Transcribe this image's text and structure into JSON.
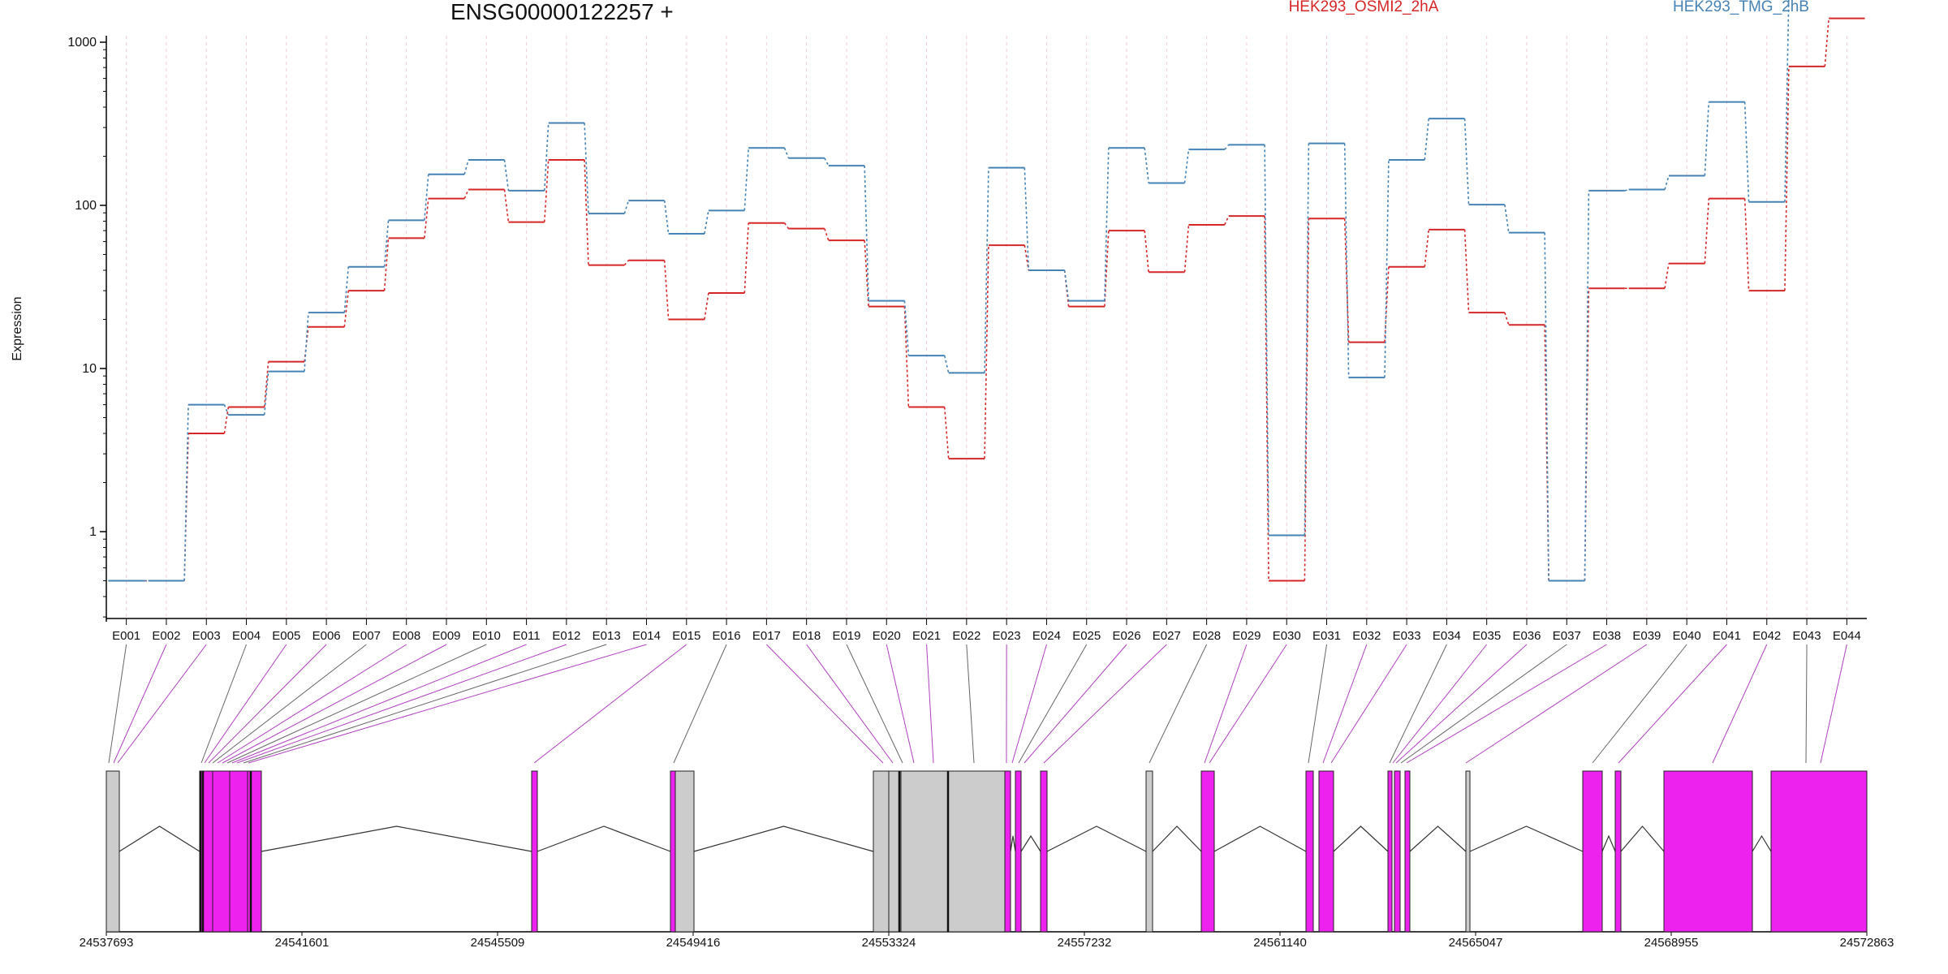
{
  "chart_data": {
    "type": "line",
    "title": "ENSG00000122257 +",
    "ylabel": "Expression",
    "yscale": "log",
    "yticks": [
      1,
      10,
      100,
      1000
    ],
    "ytick_labels": [
      "1",
      "10",
      "100",
      "1000"
    ],
    "categories": [
      "E001",
      "E002",
      "E003",
      "E004",
      "E005",
      "E006",
      "E007",
      "E008",
      "E009",
      "E010",
      "E011",
      "E012",
      "E013",
      "E014",
      "E015",
      "E016",
      "E017",
      "E018",
      "E019",
      "E020",
      "E021",
      "E022",
      "E023",
      "E024",
      "E025",
      "E026",
      "E027",
      "E028",
      "E029",
      "E030",
      "E031",
      "E032",
      "E033",
      "E034",
      "E035",
      "E036",
      "E037",
      "E038",
      "E039",
      "E040",
      "E041",
      "E042",
      "E043",
      "E044"
    ],
    "series": [
      {
        "name": "HEK293_OSMI2_2hA",
        "color": "#d62728",
        "values": [
          0.5,
          0.5,
          4,
          5.8,
          11,
          18,
          30,
          63,
          110,
          125,
          79,
          190,
          43,
          46,
          20,
          29,
          78,
          72,
          61,
          24,
          5.8,
          2.8,
          57,
          40,
          24,
          70,
          39,
          76,
          86,
          0.5,
          83,
          14.5,
          42,
          71,
          22,
          18.5,
          0.5,
          31,
          31,
          44,
          110,
          30,
          710,
          1400
        ]
      },
      {
        "name": "HEK293_TMG_2hB",
        "color": "#4682b4",
        "values": [
          0.5,
          0.5,
          6,
          5.2,
          9.6,
          22,
          42,
          81,
          155,
          190,
          123,
          320,
          89,
          107,
          67,
          93,
          225,
          195,
          175,
          26,
          12,
          9.4,
          170,
          40,
          26,
          225,
          137,
          220,
          235,
          0.95,
          240,
          8.8,
          190,
          340,
          101,
          68,
          0.5,
          123,
          125,
          152,
          430,
          105,
          1900,
          1950
        ]
      }
    ],
    "gene_model": {
      "coordinate_ticks": [
        24537693,
        24541601,
        24545509,
        24549416,
        24553324,
        24557232,
        24561140,
        24565047,
        24568955,
        24572863
      ],
      "exon_fill_colors": {
        "expressed": "#ee22ee",
        "other": "#cccccc"
      }
    },
    "grid": "vertical-faint",
    "legend_position": "top"
  }
}
